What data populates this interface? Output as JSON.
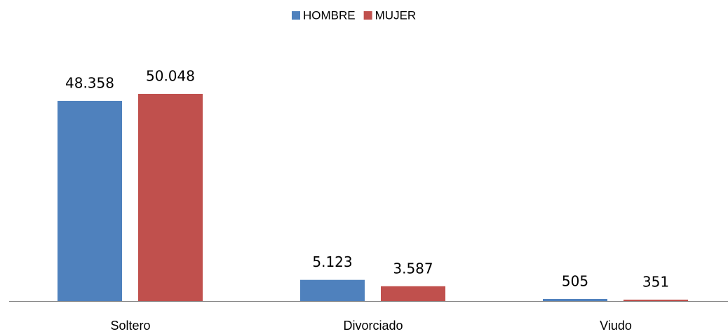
{
  "chart_data": {
    "type": "bar",
    "categories": [
      "Soltero",
      "Divorciado",
      "Viudo"
    ],
    "series": [
      {
        "name": "HOMBRE",
        "color": "#4f81bd",
        "values": [
          48358,
          5123,
          505
        ],
        "value_labels": [
          "48.358",
          "5.123",
          "505"
        ]
      },
      {
        "name": "MUJER",
        "color": "#c0504d",
        "values": [
          50048,
          3587,
          351
        ],
        "value_labels": [
          "50.048",
          "3.587",
          "351"
        ]
      }
    ]
  }
}
